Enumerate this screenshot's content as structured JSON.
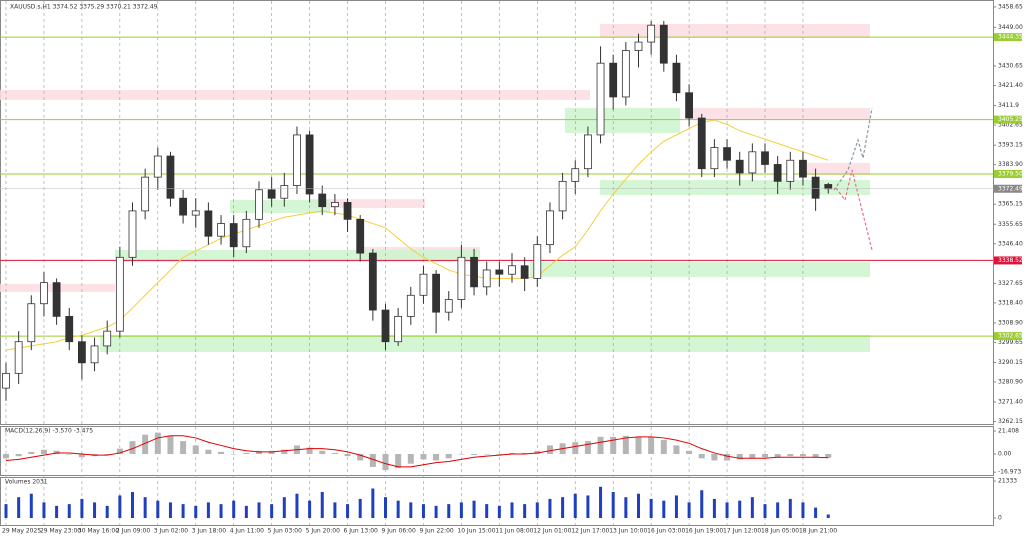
{
  "chart_data": {
    "type": "candlestick",
    "title": "XAUUSD.s,H1  3374.52 3375.29 3370.21 3372.49",
    "categories": [
      "29 May 2025",
      null,
      null,
      "29 May 23:00",
      null,
      null,
      "30 May 16:00",
      null,
      null,
      "2 Jun 09:00",
      null,
      null,
      "3 Jun 02:00",
      null,
      null,
      "3 Jun 18:00",
      null,
      null,
      "4 Jun 11:00",
      null,
      null,
      "5 Jun 03:00",
      null,
      null,
      "5 Jun 20:00",
      null,
      null,
      "6 Jun 13:00",
      null,
      null,
      "9 Jun 06:00",
      null,
      null,
      "9 Jun 22:00",
      null,
      null,
      "10 Jun 15:00",
      null,
      null,
      "11 Jun 08:00",
      null,
      null,
      "12 Jun 01:00",
      null,
      null,
      "12 Jun 17:00",
      null,
      null,
      "13 Jun 10:00",
      null,
      null,
      "16 Jun 03:00",
      null,
      null,
      "16 Jun 19:00",
      null,
      null,
      "17 Jun 12:00",
      null,
      null,
      "18 Jun 05:00",
      null,
      null,
      "18 Jun 21:00",
      null,
      null
    ],
    "ohlc": [
      [
        3278,
        3290,
        3272,
        3285
      ],
      [
        3285,
        3305,
        3280,
        3300
      ],
      [
        3300,
        3322,
        3296,
        3318
      ],
      [
        3318,
        3333,
        3312,
        3328
      ],
      [
        3328,
        3330,
        3308,
        3312
      ],
      [
        3312,
        3316,
        3296,
        3300
      ],
      [
        3300,
        3303,
        3282,
        3290
      ],
      [
        3290,
        3302,
        3286,
        3298
      ],
      [
        3298,
        3310,
        3294,
        3305
      ],
      [
        3305,
        3345,
        3302,
        3340
      ],
      [
        3340,
        3366,
        3336,
        3362
      ],
      [
        3362,
        3382,
        3358,
        3378
      ],
      [
        3378,
        3392,
        3372,
        3388
      ],
      [
        3388,
        3390,
        3364,
        3368
      ],
      [
        3368,
        3372,
        3356,
        3360
      ],
      [
        3360,
        3368,
        3354,
        3362
      ],
      [
        3362,
        3366,
        3346,
        3350
      ],
      [
        3350,
        3360,
        3346,
        3356
      ],
      [
        3356,
        3360,
        3340,
        3345
      ],
      [
        3345,
        3362,
        3342,
        3358
      ],
      [
        3358,
        3376,
        3354,
        3372
      ],
      [
        3372,
        3378,
        3364,
        3368
      ],
      [
        3368,
        3380,
        3364,
        3374
      ],
      [
        3374,
        3402,
        3370,
        3398
      ],
      [
        3398,
        3400,
        3366,
        3370
      ],
      [
        3370,
        3374,
        3360,
        3364
      ],
      [
        3364,
        3370,
        3360,
        3366
      ],
      [
        3366,
        3368,
        3352,
        3358
      ],
      [
        3358,
        3360,
        3338,
        3342
      ],
      [
        3342,
        3344,
        3310,
        3315
      ],
      [
        3315,
        3318,
        3296,
        3300
      ],
      [
        3300,
        3316,
        3298,
        3312
      ],
      [
        3312,
        3326,
        3308,
        3322
      ],
      [
        3322,
        3336,
        3318,
        3332
      ],
      [
        3332,
        3334,
        3304,
        3314
      ],
      [
        3314,
        3324,
        3310,
        3320
      ],
      [
        3320,
        3346,
        3316,
        3340
      ],
      [
        3340,
        3344,
        3322,
        3326
      ],
      [
        3326,
        3338,
        3322,
        3334
      ],
      [
        3334,
        3338,
        3326,
        3332
      ],
      [
        3332,
        3342,
        3328,
        3336
      ],
      [
        3336,
        3340,
        3324,
        3330
      ],
      [
        3330,
        3350,
        3326,
        3346
      ],
      [
        3346,
        3366,
        3342,
        3362
      ],
      [
        3362,
        3380,
        3358,
        3376
      ],
      [
        3376,
        3386,
        3370,
        3382
      ],
      [
        3382,
        3402,
        3378,
        3398
      ],
      [
        3398,
        3440,
        3394,
        3432
      ],
      [
        3432,
        3436,
        3410,
        3416
      ],
      [
        3416,
        3442,
        3412,
        3438
      ],
      [
        3438,
        3446,
        3430,
        3442
      ],
      [
        3442,
        3452,
        3436,
        3450
      ],
      [
        3450,
        3452,
        3428,
        3432
      ],
      [
        3432,
        3436,
        3414,
        3418
      ],
      [
        3418,
        3422,
        3402,
        3406
      ],
      [
        3406,
        3408,
        3378,
        3382
      ],
      [
        3382,
        3396,
        3378,
        3392
      ],
      [
        3392,
        3396,
        3382,
        3386
      ],
      [
        3386,
        3390,
        3374,
        3380
      ],
      [
        3380,
        3394,
        3376,
        3390
      ],
      [
        3390,
        3394,
        3380,
        3384
      ],
      [
        3384,
        3388,
        3370,
        3376
      ],
      [
        3376,
        3390,
        3372,
        3386
      ],
      [
        3386,
        3390,
        3374,
        3378
      ],
      [
        3378,
        3382,
        3362,
        3368
      ],
      [
        3374.52,
        3375.29,
        3370.21,
        3372.49
      ]
    ],
    "ma": {
      "color": "#f3cf3c",
      "values": [
        3296,
        3297,
        3298,
        3299,
        3300,
        3302,
        3303,
        3305,
        3307,
        3310,
        3316,
        3322,
        3328,
        3334,
        3340,
        3343,
        3346,
        3349,
        3351,
        3353,
        3355,
        3357,
        3359,
        3360,
        3361,
        3362,
        3361,
        3360,
        3358,
        3356,
        3354,
        3349,
        3344,
        3340,
        3337,
        3334,
        3332,
        3331,
        3330,
        3330,
        3330,
        3330,
        3331,
        3336,
        3341,
        3345,
        3353,
        3362,
        3370,
        3377,
        3384,
        3390,
        3395,
        3398,
        3401,
        3404,
        3405,
        3403,
        3400,
        3398,
        3396,
        3394,
        3392,
        3390,
        3388,
        3386
      ]
    },
    "ylim": [
      3261,
      3461
    ],
    "yticks": [
      3458.65,
      {
        "value": 3449,
        "label": "3449.00"
      },
      3430.65,
      {
        "value": 3421.4,
        "label": "3421.40"
      },
      3411.9,
      3402.65,
      3393.15,
      {
        "value": 3383.9,
        "label": "3383.90"
      },
      3365.15,
      3355.65,
      {
        "value": 3346.4,
        "label": "3346.40"
      },
      3327.65,
      {
        "value": 3318.4,
        "label": "3318.40"
      },
      {
        "value": 3308.9,
        "label": "3308.90"
      },
      3299.65,
      3290.15,
      {
        "value": 3280.9,
        "label": "3280.90"
      },
      {
        "value": 3271.4,
        "label": "3271.40"
      },
      3262.15
    ],
    "grid": true,
    "levels": [
      {
        "value": 3444.35,
        "color": "#9acd32"
      },
      {
        "value": 3405.25,
        "color": "#9acd32"
      },
      {
        "value": {
          "value": 3379.5,
          "label": "3379.50"
        },
        "color": "#9acd32"
      },
      {
        "value": 3338.52,
        "color": "#dc143c"
      },
      {
        "value": 3302.65,
        "color": "#9acd32"
      }
    ],
    "zones": [
      {
        "low": 3444,
        "high": 3450.6,
        "color": "#fcdde2"
      },
      {
        "low": 3414.6,
        "high": 3419.3,
        "color": "#fcdde2"
      },
      {
        "low": 3405.1,
        "high": 3410.8,
        "color": "#fcdde2"
      },
      {
        "low": 3379,
        "high": 3384.7,
        "color": "#fcdde2"
      },
      {
        "low": 3363.4,
        "high": 3367.6,
        "color": "#fcdde2"
      },
      {
        "low": 3339.7,
        "high": 3344.9,
        "color": "#fcdde2"
      },
      {
        "low": 3323.6,
        "high": 3327.4,
        "color": "#fcdde2"
      },
      {
        "low": 3398.9,
        "high": 3410.8,
        "color": "#cdf5cd"
      },
      {
        "low": 3369.5,
        "high": 3376.6,
        "color": "#cdf5cd"
      },
      {
        "low": 3361,
        "high": 3367.2,
        "color": "#cdf5cd"
      },
      {
        "low": 3337.8,
        "high": 3343.5,
        "color": "#cdf5cd"
      },
      {
        "low": 3330.7,
        "high": 3337.8,
        "color": "#cdf5cd"
      },
      {
        "low": 3295.1,
        "high": 3303.2,
        "color": "#cdf5cd"
      }
    ],
    "macd": {
      "title": "MACD(12,26,9) -3.570 -3.475",
      "histogram": [
        -4,
        -2,
        2,
        4,
        3,
        0,
        -3,
        -2,
        0,
        5,
        12,
        18,
        20,
        17,
        12,
        8,
        4,
        2,
        0,
        1,
        3,
        3,
        4,
        8,
        6,
        3,
        1,
        -2,
        -6,
        -12,
        -15,
        -13,
        -9,
        -5,
        -6,
        -4,
        0,
        -1,
        0,
        0,
        1,
        1,
        3,
        8,
        10,
        11,
        12,
        16,
        16,
        17,
        16,
        16,
        13,
        8,
        3,
        -4,
        -6,
        -6,
        -5,
        -4,
        -3,
        -3,
        -2,
        -2,
        -3,
        -3.57
      ],
      "signal": [
        -6,
        -5,
        -3,
        -1,
        1,
        1,
        0,
        -1,
        -1,
        1,
        5,
        10,
        15,
        17,
        17,
        15,
        11,
        8,
        5,
        3,
        2,
        2,
        3,
        4,
        5,
        5,
        4,
        2,
        -1,
        -5,
        -9,
        -12,
        -12,
        -10,
        -8,
        -7,
        -5,
        -3,
        -2,
        -1,
        0,
        0,
        1,
        3,
        5,
        7,
        9,
        11,
        13,
        15,
        16,
        16,
        15,
        13,
        10,
        5,
        1,
        -2,
        -4,
        -4,
        -4,
        -3,
        -3,
        -3,
        -3,
        -3.475
      ],
      "signal_color": "#e00000",
      "ylim": [
        -20.5,
        25.2
      ],
      "yticks": [
        21.408,
        {
          "value": 0,
          "label": "0.00"
        },
        -16.973
      ]
    },
    "volume": {
      "title": "Volumes 2031",
      "values": [
        8000,
        12000,
        14000,
        9000,
        7000,
        8000,
        11000,
        9000,
        7000,
        13000,
        15000,
        12000,
        10000,
        9000,
        8000,
        7000,
        9000,
        8000,
        10000,
        7000,
        9000,
        8000,
        12000,
        14000,
        10000,
        15000,
        9000,
        8000,
        11000,
        17000,
        12000,
        10000,
        9000,
        8000,
        7000,
        8000,
        9000,
        10000,
        8000,
        7000,
        9000,
        8000,
        9000,
        11000,
        12000,
        14000,
        13000,
        18000,
        15000,
        12000,
        14000,
        11000,
        10000,
        13000,
        9000,
        16000,
        11000,
        9000,
        10000,
        12000,
        8000,
        9000,
        11000,
        9000,
        6000,
        2031
      ],
      "color": "#1f3fbf",
      "ylim": [
        0,
        21333
      ],
      "yticks": [
        21333,
        0
      ]
    }
  }
}
